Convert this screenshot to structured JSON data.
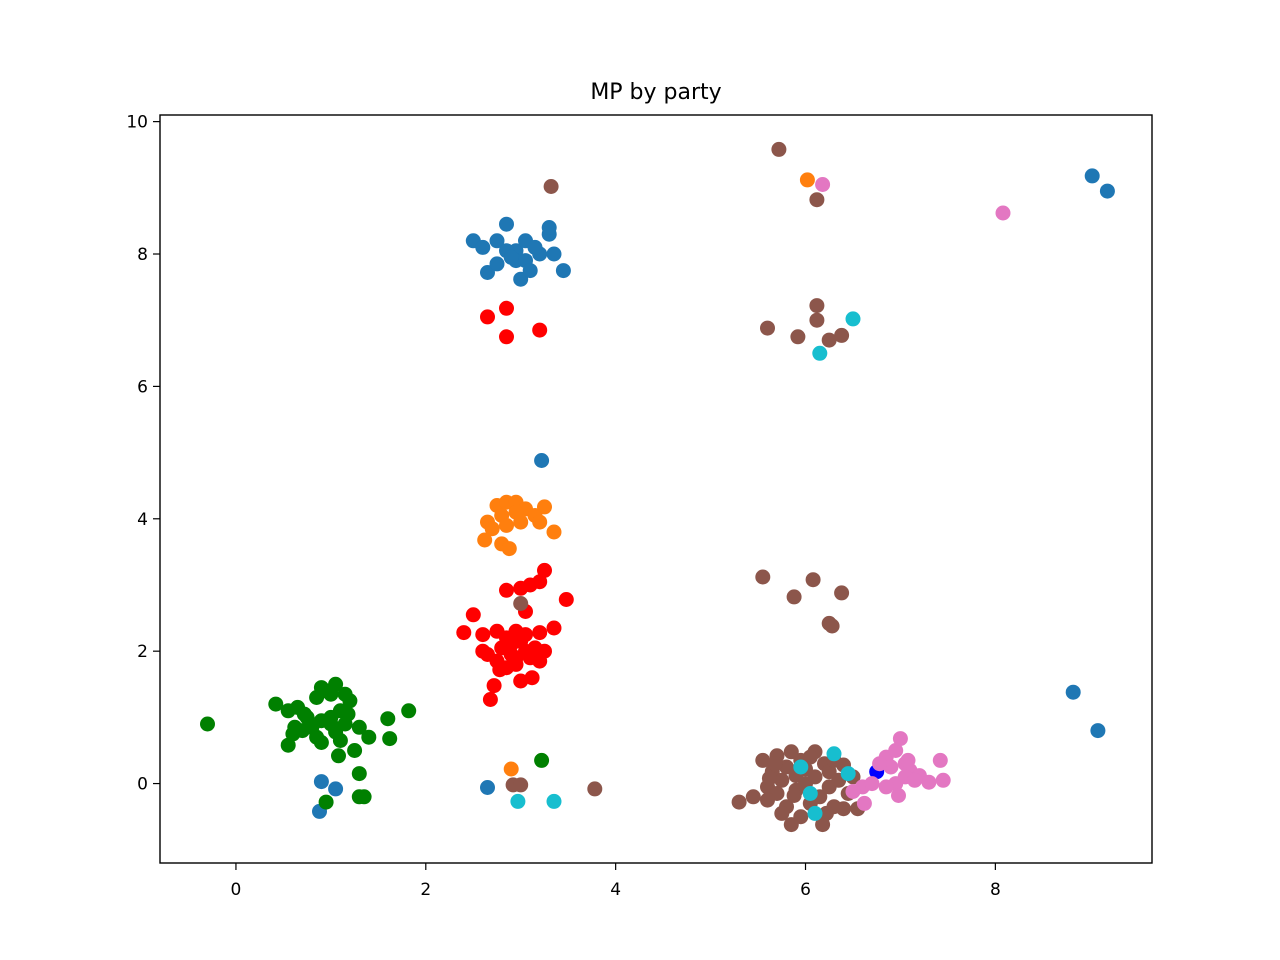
{
  "chart_data": {
    "type": "scatter",
    "title": "MP by party",
    "xlabel": "",
    "ylabel": "",
    "xlim": [
      -0.8,
      9.65
    ],
    "ylim": [
      -1.2,
      10.1
    ],
    "xticks": [
      0,
      2,
      4,
      6,
      8
    ],
    "yticks": [
      0,
      2,
      4,
      6,
      8,
      10
    ],
    "xtick_labels": [
      "0",
      "2",
      "4",
      "6",
      "8"
    ],
    "ytick_labels": [
      "0",
      "2",
      "4",
      "6",
      "8",
      "10"
    ],
    "grid": false,
    "legend": "none",
    "series": [
      {
        "color": "#1f77b4",
        "points": [
          [
            2.5,
            8.2
          ],
          [
            2.6,
            8.1
          ],
          [
            2.75,
            8.2
          ],
          [
            2.85,
            8.45
          ],
          [
            2.95,
            8.05
          ],
          [
            3.05,
            8.2
          ],
          [
            3.2,
            8.0
          ],
          [
            3.3,
            8.3
          ],
          [
            3.3,
            8.4
          ],
          [
            3.35,
            8.0
          ],
          [
            2.65,
            7.72
          ],
          [
            2.75,
            7.85
          ],
          [
            2.85,
            8.05
          ],
          [
            2.95,
            7.9
          ],
          [
            3.05,
            7.9
          ],
          [
            3.0,
            7.62
          ],
          [
            3.1,
            7.75
          ],
          [
            3.45,
            7.75
          ],
          [
            3.15,
            8.1
          ],
          [
            2.9,
            7.95
          ],
          [
            3.22,
            4.88
          ],
          [
            0.9,
            0.03
          ],
          [
            1.05,
            -0.08
          ],
          [
            0.88,
            -0.42
          ],
          [
            2.65,
            -0.06
          ],
          [
            8.82,
            1.38
          ],
          [
            9.08,
            0.8
          ],
          [
            9.02,
            9.18
          ],
          [
            9.18,
            8.95
          ]
        ]
      },
      {
        "color": "#ff0000",
        "points": [
          [
            2.65,
            7.05
          ],
          [
            2.85,
            7.18
          ],
          [
            2.85,
            6.75
          ],
          [
            3.2,
            6.85
          ],
          [
            2.5,
            2.55
          ],
          [
            2.4,
            2.28
          ],
          [
            2.6,
            2.25
          ],
          [
            2.75,
            2.3
          ],
          [
            2.85,
            2.2
          ],
          [
            2.95,
            2.3
          ],
          [
            3.05,
            2.25
          ],
          [
            3.2,
            2.28
          ],
          [
            3.35,
            2.35
          ],
          [
            3.48,
            2.78
          ],
          [
            2.85,
            2.92
          ],
          [
            3.0,
            2.95
          ],
          [
            3.1,
            3.0
          ],
          [
            3.2,
            3.05
          ],
          [
            3.25,
            3.22
          ],
          [
            3.05,
            2.6
          ],
          [
            2.65,
            1.95
          ],
          [
            2.75,
            1.85
          ],
          [
            2.8,
            2.05
          ],
          [
            2.9,
            2.1
          ],
          [
            2.95,
            1.9
          ],
          [
            3.0,
            2.15
          ],
          [
            3.05,
            2.0
          ],
          [
            3.1,
            1.9
          ],
          [
            3.15,
            2.05
          ],
          [
            3.2,
            1.85
          ],
          [
            3.25,
            2.0
          ],
          [
            2.85,
            1.75
          ],
          [
            2.95,
            1.8
          ],
          [
            2.78,
            1.72
          ],
          [
            2.6,
            2.0
          ],
          [
            2.72,
            1.48
          ],
          [
            2.68,
            1.27
          ],
          [
            3.0,
            1.55
          ],
          [
            3.12,
            1.6
          ],
          [
            2.9,
            1.95
          ]
        ]
      },
      {
        "color": "#ff7f0e",
        "points": [
          [
            2.75,
            4.2
          ],
          [
            2.85,
            4.25
          ],
          [
            2.95,
            4.25
          ],
          [
            3.05,
            4.15
          ],
          [
            3.25,
            4.18
          ],
          [
            2.8,
            4.05
          ],
          [
            2.95,
            4.1
          ],
          [
            3.15,
            4.05
          ],
          [
            2.65,
            3.95
          ],
          [
            2.85,
            3.9
          ],
          [
            3.0,
            3.95
          ],
          [
            3.2,
            3.95
          ],
          [
            3.35,
            3.8
          ],
          [
            2.62,
            3.68
          ],
          [
            2.8,
            3.62
          ],
          [
            2.88,
            3.55
          ],
          [
            2.7,
            3.85
          ],
          [
            2.9,
            0.22
          ],
          [
            6.02,
            9.12
          ]
        ]
      },
      {
        "color": "#008000",
        "points": [
          [
            -0.3,
            0.9
          ],
          [
            0.42,
            1.2
          ],
          [
            0.55,
            1.1
          ],
          [
            0.65,
            1.15
          ],
          [
            0.75,
            1.0
          ],
          [
            0.85,
            1.3
          ],
          [
            0.9,
            1.45
          ],
          [
            0.95,
            1.4
          ],
          [
            1.0,
            1.35
          ],
          [
            1.05,
            1.5
          ],
          [
            1.15,
            1.35
          ],
          [
            1.2,
            1.25
          ],
          [
            1.1,
            1.1
          ],
          [
            1.0,
            1.0
          ],
          [
            0.9,
            0.95
          ],
          [
            0.8,
            0.85
          ],
          [
            0.7,
            0.8
          ],
          [
            0.6,
            0.75
          ],
          [
            0.85,
            0.7
          ],
          [
            0.9,
            0.62
          ],
          [
            1.0,
            0.9
          ],
          [
            1.15,
            0.9
          ],
          [
            1.3,
            0.85
          ],
          [
            1.1,
            0.65
          ],
          [
            1.25,
            0.5
          ],
          [
            1.4,
            0.7
          ],
          [
            1.6,
            0.98
          ],
          [
            1.62,
            0.68
          ],
          [
            1.82,
            1.1
          ],
          [
            0.55,
            0.58
          ],
          [
            1.08,
            0.42
          ],
          [
            1.3,
            0.15
          ],
          [
            1.3,
            -0.2
          ],
          [
            1.35,
            -0.2
          ],
          [
            0.95,
            -0.28
          ],
          [
            0.62,
            0.85
          ],
          [
            1.05,
            0.78
          ],
          [
            1.18,
            1.05
          ],
          [
            0.72,
            1.05
          ],
          [
            3.22,
            0.35
          ]
        ]
      },
      {
        "color": "#8c564b",
        "points": [
          [
            3.32,
            9.02
          ],
          [
            5.72,
            9.58
          ],
          [
            6.12,
            8.82
          ],
          [
            6.12,
            7.22
          ],
          [
            6.12,
            7.0
          ],
          [
            5.6,
            6.88
          ],
          [
            5.92,
            6.75
          ],
          [
            6.25,
            6.7
          ],
          [
            6.38,
            6.77
          ],
          [
            3.0,
            2.72
          ],
          [
            5.55,
            3.12
          ],
          [
            5.88,
            2.82
          ],
          [
            6.08,
            3.08
          ],
          [
            6.38,
            2.88
          ],
          [
            6.25,
            2.42
          ],
          [
            6.28,
            2.38
          ],
          [
            2.92,
            -0.02
          ],
          [
            3.0,
            -0.02
          ],
          [
            3.78,
            -0.08
          ],
          [
            5.3,
            -0.28
          ],
          [
            5.45,
            -0.2
          ],
          [
            5.55,
            0.35
          ],
          [
            5.6,
            -0.05
          ],
          [
            5.65,
            0.18
          ],
          [
            5.7,
            -0.15
          ],
          [
            5.7,
            0.42
          ],
          [
            5.75,
            0.05
          ],
          [
            5.8,
            -0.35
          ],
          [
            5.8,
            0.25
          ],
          [
            5.85,
            0.48
          ],
          [
            5.9,
            -0.1
          ],
          [
            5.9,
            0.12
          ],
          [
            5.95,
            0.35
          ],
          [
            5.95,
            -0.5
          ],
          [
            6.0,
            0.0
          ],
          [
            6.0,
            0.22
          ],
          [
            6.05,
            -0.3
          ],
          [
            6.1,
            0.1
          ],
          [
            6.1,
            0.48
          ],
          [
            6.15,
            -0.2
          ],
          [
            6.2,
            0.3
          ],
          [
            6.25,
            -0.05
          ],
          [
            6.25,
            0.18
          ],
          [
            6.3,
            -0.35
          ],
          [
            6.35,
            0.05
          ],
          [
            6.4,
            0.28
          ],
          [
            6.45,
            -0.15
          ],
          [
            6.5,
            0.1
          ],
          [
            5.6,
            -0.25
          ],
          [
            5.85,
            -0.62
          ],
          [
            5.75,
            -0.45
          ],
          [
            6.18,
            -0.62
          ],
          [
            6.4,
            -0.38
          ],
          [
            6.55,
            -0.38
          ],
          [
            5.62,
            0.08
          ],
          [
            6.05,
            0.4
          ],
          [
            5.88,
            -0.18
          ],
          [
            6.3,
            0.35
          ],
          [
            5.68,
            0.3
          ],
          [
            6.22,
            -0.45
          ]
        ]
      },
      {
        "color": "#17becf",
        "points": [
          [
            6.5,
            7.02
          ],
          [
            6.15,
            6.5
          ],
          [
            2.97,
            -0.27
          ],
          [
            3.35,
            -0.27
          ],
          [
            5.95,
            0.25
          ],
          [
            6.05,
            -0.15
          ],
          [
            6.3,
            0.45
          ],
          [
            6.45,
            0.15
          ],
          [
            6.1,
            -0.45
          ]
        ]
      },
      {
        "color": "#0000ff",
        "points": [
          [
            6.75,
            0.18
          ]
        ]
      },
      {
        "color": "#e377c2",
        "points": [
          [
            6.18,
            9.05
          ],
          [
            8.08,
            8.62
          ],
          [
            6.85,
            0.4
          ],
          [
            6.95,
            0.5
          ],
          [
            7.0,
            0.68
          ],
          [
            7.05,
            0.3
          ],
          [
            7.1,
            0.2
          ],
          [
            7.2,
            0.12
          ],
          [
            7.3,
            0.02
          ],
          [
            7.42,
            0.35
          ],
          [
            7.45,
            0.05
          ],
          [
            6.9,
            0.25
          ],
          [
            6.95,
            0.0
          ],
          [
            7.05,
            0.1
          ],
          [
            7.15,
            0.05
          ],
          [
            6.6,
            -0.05
          ],
          [
            6.7,
            0.0
          ],
          [
            6.85,
            -0.05
          ],
          [
            6.98,
            -0.18
          ],
          [
            6.62,
            -0.3
          ],
          [
            6.5,
            -0.12
          ],
          [
            7.08,
            0.35
          ],
          [
            6.78,
            0.3
          ]
        ]
      }
    ]
  }
}
